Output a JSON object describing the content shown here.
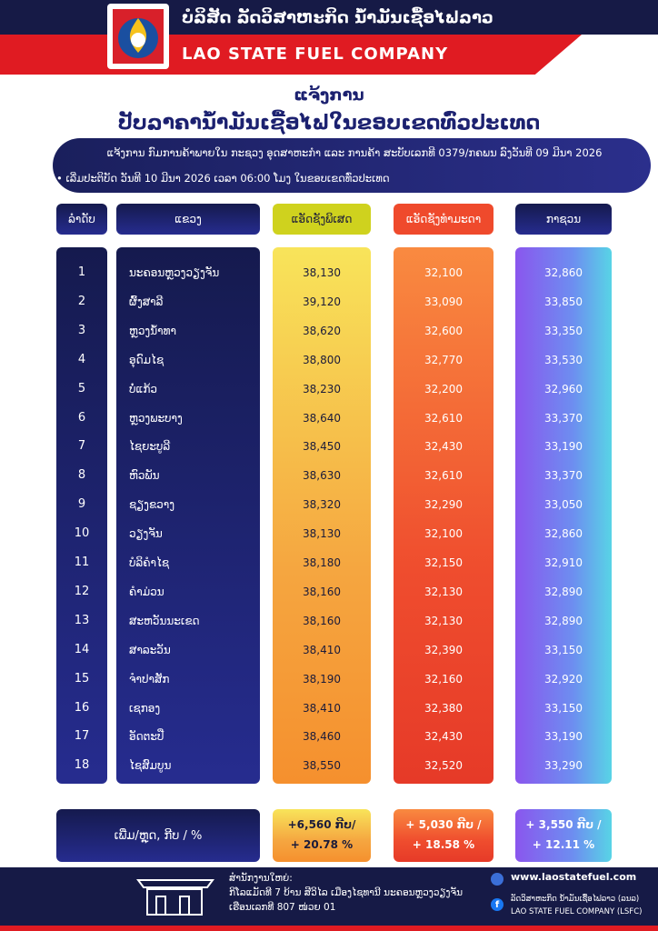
{
  "header": {
    "company_lao": "ບໍລິສັດ ລັດວິສາຫະກິດ ນ້ຳມັນເຊື້ອໄຟລາວ",
    "company_en": "LAO STATE FUEL COMPANY"
  },
  "notice": {
    "title": "ແຈ້ງການ",
    "subtitle": "ປັບລາຄານ້ຳມັນເຊື້ອໄຟໃນຂອບເຂດທົ່ວປະເທດ",
    "reference": "ແຈ້ງການ ກົມການຄ້າພາຍໃນ ກະຊວງ ອຸດສາຫະກຳ ແລະ ການຄ້າ ສະບັບເລກທີ 0379/ກຄພນ ລົງວັນທີ 09 ມີນາ 2026",
    "effective": "ເລີ່ມປະຕິບັດ ວັນທີ 10 ມີນາ 2026 ເວລາ 06:00 ໂມງ ໃນຂອບເຂດທົ່ວປະເທດ"
  },
  "table": {
    "columns": [
      "ລຳດັບ",
      "ແຂວງ",
      "ແອັດຊັງພິເສດ",
      "ແອັດຊັງທຳມະດາ",
      "ກາຊວນ"
    ],
    "rows": [
      [
        "1",
        "ນະຄອນຫຼວງວຽງຈັນ",
        "38,130",
        "32,100",
        "32,860"
      ],
      [
        "2",
        "ຜົ້ງສາລີ",
        "39,120",
        "33,090",
        "33,850"
      ],
      [
        "3",
        "ຫຼວງນ້ຳທາ",
        "38,620",
        "32,600",
        "33,350"
      ],
      [
        "4",
        "ອຸດົມໄຊ",
        "38,800",
        "32,770",
        "33,530"
      ],
      [
        "5",
        "ບໍ່ແກ້ວ",
        "38,230",
        "32,200",
        "32,960"
      ],
      [
        "6",
        "ຫຼວງພະບາງ",
        "38,640",
        "32,610",
        "33,370"
      ],
      [
        "7",
        "ໄຊຍະບູລີ",
        "38,450",
        "32,430",
        "33,190"
      ],
      [
        "8",
        "ຫົວພັນ",
        "38,630",
        "32,610",
        "33,370"
      ],
      [
        "9",
        "ຊຽງຂວາງ",
        "38,320",
        "32,290",
        "33,050"
      ],
      [
        "10",
        "ວຽງຈັນ",
        "38,130",
        "32,100",
        "32,860"
      ],
      [
        "11",
        "ບໍລິຄຳໄຊ",
        "38,180",
        "32,150",
        "32,910"
      ],
      [
        "12",
        "ຄຳມ່ວນ",
        "38,160",
        "32,130",
        "32,890"
      ],
      [
        "13",
        "ສະຫວັນນະເຂດ",
        "38,160",
        "32,130",
        "32,890"
      ],
      [
        "14",
        "ສາລະວັນ",
        "38,410",
        "32,390",
        "33,150"
      ],
      [
        "15",
        "ຈຳປາສັກ",
        "38,190",
        "32,160",
        "32,920"
      ],
      [
        "16",
        "ເຊກອງ",
        "38,410",
        "32,380",
        "33,150"
      ],
      [
        "17",
        "ອັດຕະປື",
        "38,460",
        "32,430",
        "33,190"
      ],
      [
        "18",
        "ໄຊສົມບູນ",
        "38,550",
        "32,520",
        "33,290"
      ]
    ],
    "change": {
      "label": "ເພີ່ມ/ຫຼຸດ, ກີບ / %",
      "cells": [
        [
          "+6,560 ກີບ/",
          "+ 20.78 %"
        ],
        [
          "+ 5,030 ກີບ /",
          "+ 18.58 %"
        ],
        [
          "+ 3,550 ກີບ /",
          "+ 12.11 %"
        ]
      ]
    }
  },
  "footer": {
    "office_label": "ສຳນັກງານໃຫຍ່:",
    "address_1": "ກິໂລແມັດທີ 7 ບ້ານ ສີວິໄລ ເມືອງໄຊທານີ ນະຄອນຫຼວງວຽງຈັນ",
    "address_2": "ເຮືອນເລກທີ 807 ໜ່ວຍ 01",
    "website": "www.laostatefuel.com",
    "facebook_lao": "ລັດວິສາຫະກິດ ນ້ຳມັນເຊື້ອໄຟລາວ (ລນລ)",
    "facebook_en": "LAO STATE FUEL COMPANY (LSFC)"
  }
}
